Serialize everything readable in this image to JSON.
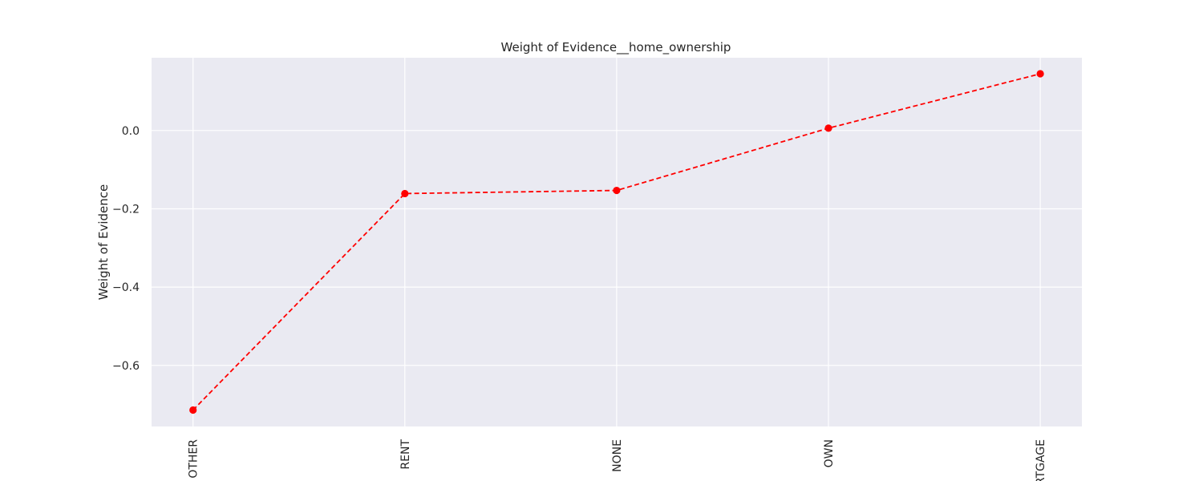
{
  "chart_data": {
    "type": "line",
    "title": "Weight of Evidence__home_ownership",
    "xlabel": "",
    "ylabel": "Weight of Evidence",
    "categories": [
      "OTHER",
      "RENT",
      "NONE",
      "OWN",
      "MORTGAGE"
    ],
    "series": [
      {
        "values": [
          -0.714,
          -0.161,
          -0.153,
          0.006,
          0.145
        ],
        "color": "#ff0000",
        "linestyle": "dashed",
        "marker": "circle"
      }
    ],
    "ylim": [
      -0.756,
      0.186
    ],
    "yticks": [
      0.0,
      -0.2,
      -0.4,
      -0.6
    ],
    "ytick_labels": [
      "0.0",
      "−0.2",
      "−0.4",
      "−0.6"
    ],
    "grid": true,
    "background_color": "#eaeaf2",
    "grid_color": "#ffffff"
  }
}
